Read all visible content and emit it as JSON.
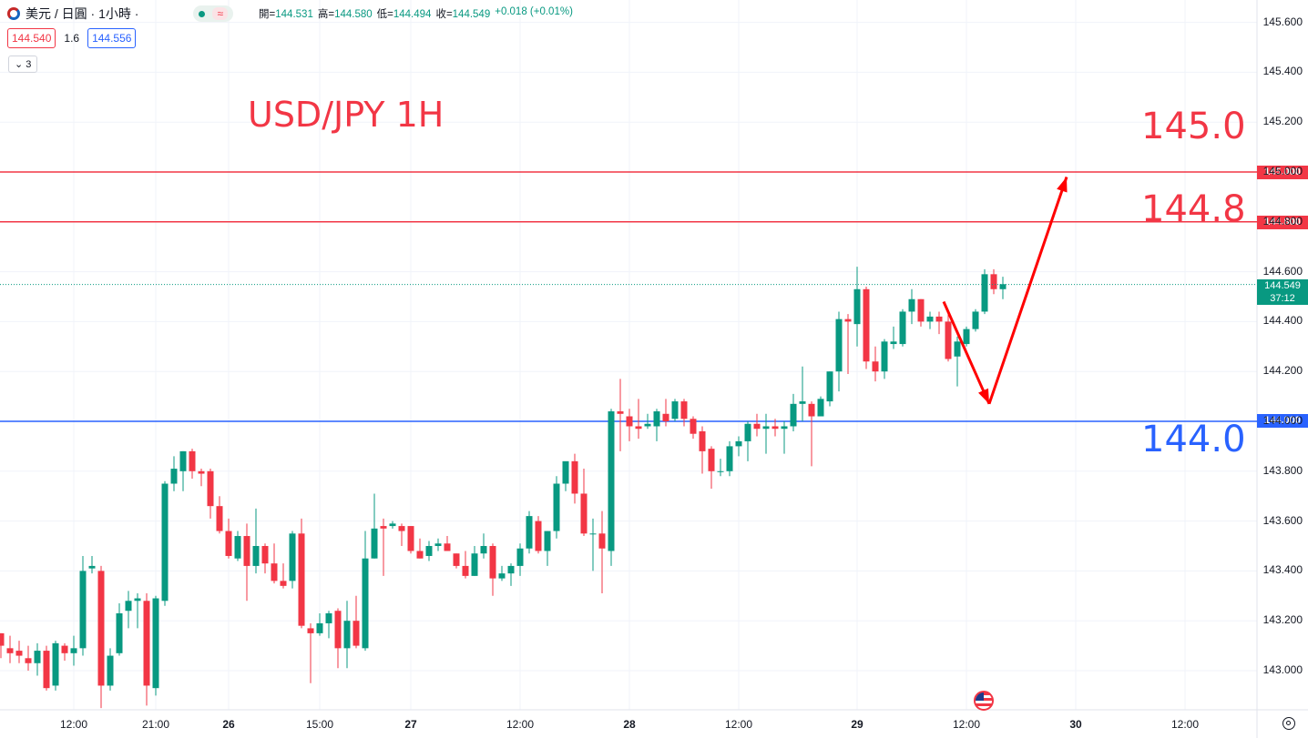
{
  "header": {
    "symbol": "美元 / 日圓 · 1小時 ·",
    "pill_icon": "≈",
    "ohlc": [
      {
        "key": "開",
        "value": "144.531"
      },
      {
        "key": "高",
        "value": "144.580"
      },
      {
        "key": "低",
        "value": "144.494"
      },
      {
        "key": "收",
        "value": "144.549"
      },
      {
        "key": "",
        "value": "+0.018 (+0.01%)"
      }
    ],
    "bid": "144.540",
    "spread": "1.6",
    "ask": "144.556",
    "indicator_toggle": "3"
  },
  "annotations": {
    "title": "USD/JPY 1H",
    "level_145": "145.0",
    "level_1448": "144.8",
    "level_144": "144.0"
  },
  "price_labels": {
    "l145": "145.000",
    "l1448": "144.800",
    "l144": "144.000",
    "current": "144.549",
    "countdown": "37:12"
  },
  "icons": {
    "settings": "gear-icon",
    "event": "us-flag-icon"
  },
  "colors": {
    "up": "#089981",
    "down": "#f23645",
    "support": "#2962ff",
    "resistance": "#f23645"
  },
  "chart_data": {
    "type": "candlestick",
    "title": "USD/JPY 1H",
    "ylim": [
      142.88,
      145.66
    ],
    "y_ticks": [
      "145.600",
      "145.400",
      "145.200",
      "145.000",
      "144.800",
      "144.600",
      "144.400",
      "144.200",
      "144.000",
      "143.800",
      "143.600",
      "143.400",
      "143.200",
      "143.000"
    ],
    "x_ticks": [
      "12:00",
      "21:00",
      "26",
      "15:00",
      "27",
      "12:00",
      "28",
      "12:00",
      "29",
      "12:00",
      "30",
      "12:00"
    ],
    "x_ticks_bold": [
      false,
      false,
      true,
      false,
      true,
      false,
      true,
      false,
      true,
      false,
      true,
      false
    ],
    "horizontal_lines": [
      {
        "price": 145.0,
        "color": "#f23645"
      },
      {
        "price": 144.8,
        "color": "#f23645"
      },
      {
        "price": 144.0,
        "color": "#2962ff"
      }
    ],
    "current_price": 144.549,
    "projection": [
      {
        "bar": 103.5,
        "price": 144.48
      },
      {
        "bar": 108.5,
        "price": 144.07
      },
      {
        "bar": 117.0,
        "price": 144.98
      }
    ],
    "candles": [
      {
        "o": 143.15,
        "h": 143.15,
        "l": 143.05,
        "c": 143.1
      },
      {
        "o": 143.09,
        "h": 143.14,
        "l": 143.03,
        "c": 143.07
      },
      {
        "o": 143.08,
        "h": 143.12,
        "l": 143.03,
        "c": 143.06
      },
      {
        "o": 143.05,
        "h": 143.1,
        "l": 143.0,
        "c": 143.03
      },
      {
        "o": 143.03,
        "h": 143.11,
        "l": 142.98,
        "c": 143.08
      },
      {
        "o": 143.08,
        "h": 143.1,
        "l": 142.92,
        "c": 142.93
      },
      {
        "o": 142.94,
        "h": 143.12,
        "l": 142.92,
        "c": 143.11
      },
      {
        "o": 143.1,
        "h": 143.11,
        "l": 143.04,
        "c": 143.07
      },
      {
        "o": 143.07,
        "h": 143.14,
        "l": 143.02,
        "c": 143.09
      },
      {
        "o": 143.09,
        "h": 143.46,
        "l": 143.06,
        "c": 143.4
      },
      {
        "o": 143.41,
        "h": 143.46,
        "l": 143.39,
        "c": 143.42
      },
      {
        "o": 143.4,
        "h": 143.42,
        "l": 142.85,
        "c": 142.94
      },
      {
        "o": 142.94,
        "h": 143.09,
        "l": 142.92,
        "c": 143.06
      },
      {
        "o": 143.07,
        "h": 143.27,
        "l": 143.06,
        "c": 143.23
      },
      {
        "o": 143.24,
        "h": 143.32,
        "l": 143.17,
        "c": 143.28
      },
      {
        "o": 143.28,
        "h": 143.31,
        "l": 143.17,
        "c": 143.29
      },
      {
        "o": 143.28,
        "h": 143.31,
        "l": 142.86,
        "c": 142.94
      },
      {
        "o": 142.93,
        "h": 143.3,
        "l": 142.9,
        "c": 143.29
      },
      {
        "o": 143.28,
        "h": 143.76,
        "l": 143.26,
        "c": 143.75
      },
      {
        "o": 143.75,
        "h": 143.86,
        "l": 143.72,
        "c": 143.81
      },
      {
        "o": 143.8,
        "h": 143.88,
        "l": 143.72,
        "c": 143.88
      },
      {
        "o": 143.88,
        "h": 143.89,
        "l": 143.77,
        "c": 143.8
      },
      {
        "o": 143.8,
        "h": 143.81,
        "l": 143.74,
        "c": 143.79
      },
      {
        "o": 143.8,
        "h": 143.81,
        "l": 143.61,
        "c": 143.66
      },
      {
        "o": 143.66,
        "h": 143.7,
        "l": 143.55,
        "c": 143.56
      },
      {
        "o": 143.56,
        "h": 143.61,
        "l": 143.45,
        "c": 143.46
      },
      {
        "o": 143.45,
        "h": 143.56,
        "l": 143.44,
        "c": 143.54
      },
      {
        "o": 143.54,
        "h": 143.59,
        "l": 143.28,
        "c": 143.42
      },
      {
        "o": 143.42,
        "h": 143.65,
        "l": 143.39,
        "c": 143.5
      },
      {
        "o": 143.5,
        "h": 143.51,
        "l": 143.39,
        "c": 143.43
      },
      {
        "o": 143.43,
        "h": 143.51,
        "l": 143.35,
        "c": 143.36
      },
      {
        "o": 143.36,
        "h": 143.43,
        "l": 143.33,
        "c": 143.34
      },
      {
        "o": 143.36,
        "h": 143.56,
        "l": 143.33,
        "c": 143.55
      },
      {
        "o": 143.55,
        "h": 143.61,
        "l": 143.17,
        "c": 143.18
      },
      {
        "o": 143.17,
        "h": 143.19,
        "l": 142.95,
        "c": 143.15
      },
      {
        "o": 143.15,
        "h": 143.23,
        "l": 143.14,
        "c": 143.19
      },
      {
        "o": 143.19,
        "h": 143.24,
        "l": 143.13,
        "c": 143.23
      },
      {
        "o": 143.24,
        "h": 143.25,
        "l": 143.01,
        "c": 143.09
      },
      {
        "o": 143.09,
        "h": 143.28,
        "l": 143.01,
        "c": 143.2
      },
      {
        "o": 143.2,
        "h": 143.3,
        "l": 143.09,
        "c": 143.1
      },
      {
        "o": 143.09,
        "h": 143.56,
        "l": 143.08,
        "c": 143.45
      },
      {
        "o": 143.45,
        "h": 143.71,
        "l": 143.45,
        "c": 143.57
      },
      {
        "o": 143.58,
        "h": 143.61,
        "l": 143.38,
        "c": 143.57
      },
      {
        "o": 143.58,
        "h": 143.6,
        "l": 143.57,
        "c": 143.59
      },
      {
        "o": 143.58,
        "h": 143.59,
        "l": 143.5,
        "c": 143.56
      },
      {
        "o": 143.58,
        "h": 143.58,
        "l": 143.47,
        "c": 143.48
      },
      {
        "o": 143.48,
        "h": 143.53,
        "l": 143.45,
        "c": 143.45
      },
      {
        "o": 143.46,
        "h": 143.52,
        "l": 143.44,
        "c": 143.5
      },
      {
        "o": 143.5,
        "h": 143.53,
        "l": 143.48,
        "c": 143.51
      },
      {
        "o": 143.51,
        "h": 143.54,
        "l": 143.48,
        "c": 143.48
      },
      {
        "o": 143.47,
        "h": 143.47,
        "l": 143.41,
        "c": 143.42
      },
      {
        "o": 143.42,
        "h": 143.48,
        "l": 143.37,
        "c": 143.38
      },
      {
        "o": 143.38,
        "h": 143.5,
        "l": 143.38,
        "c": 143.47
      },
      {
        "o": 143.47,
        "h": 143.55,
        "l": 143.45,
        "c": 143.5
      },
      {
        "o": 143.5,
        "h": 143.51,
        "l": 143.3,
        "c": 143.37
      },
      {
        "o": 143.37,
        "h": 143.42,
        "l": 143.36,
        "c": 143.39
      },
      {
        "o": 143.39,
        "h": 143.43,
        "l": 143.34,
        "c": 143.42
      },
      {
        "o": 143.42,
        "h": 143.51,
        "l": 143.38,
        "c": 143.49
      },
      {
        "o": 143.49,
        "h": 143.64,
        "l": 143.47,
        "c": 143.62
      },
      {
        "o": 143.6,
        "h": 143.62,
        "l": 143.47,
        "c": 143.48
      },
      {
        "o": 143.48,
        "h": 143.56,
        "l": 143.42,
        "c": 143.56
      },
      {
        "o": 143.56,
        "h": 143.78,
        "l": 143.53,
        "c": 143.75
      },
      {
        "o": 143.75,
        "h": 143.83,
        "l": 143.72,
        "c": 143.84
      },
      {
        "o": 143.84,
        "h": 143.87,
        "l": 143.67,
        "c": 143.71
      },
      {
        "o": 143.71,
        "h": 143.81,
        "l": 143.54,
        "c": 143.55
      },
      {
        "o": 143.55,
        "h": 143.61,
        "l": 143.4,
        "c": 143.55
      },
      {
        "o": 143.55,
        "h": 143.64,
        "l": 143.31,
        "c": 143.49
      },
      {
        "o": 143.48,
        "h": 144.05,
        "l": 143.42,
        "c": 144.04
      },
      {
        "o": 144.04,
        "h": 144.17,
        "l": 143.88,
        "c": 144.03
      },
      {
        "o": 144.02,
        "h": 144.05,
        "l": 143.92,
        "c": 143.98
      },
      {
        "o": 143.98,
        "h": 144.09,
        "l": 143.93,
        "c": 143.97
      },
      {
        "o": 143.98,
        "h": 144.03,
        "l": 143.97,
        "c": 143.99
      },
      {
        "o": 143.98,
        "h": 144.05,
        "l": 143.92,
        "c": 144.04
      },
      {
        "o": 144.03,
        "h": 144.09,
        "l": 143.98,
        "c": 144.0
      },
      {
        "o": 144.01,
        "h": 144.09,
        "l": 144.0,
        "c": 144.08
      },
      {
        "o": 144.08,
        "h": 144.09,
        "l": 143.98,
        "c": 144.01
      },
      {
        "o": 144.01,
        "h": 144.02,
        "l": 143.93,
        "c": 143.95
      },
      {
        "o": 143.96,
        "h": 143.98,
        "l": 143.79,
        "c": 143.88
      },
      {
        "o": 143.89,
        "h": 143.9,
        "l": 143.73,
        "c": 143.8
      },
      {
        "o": 143.8,
        "h": 143.85,
        "l": 143.78,
        "c": 143.8
      },
      {
        "o": 143.8,
        "h": 143.92,
        "l": 143.78,
        "c": 143.9
      },
      {
        "o": 143.9,
        "h": 143.94,
        "l": 143.86,
        "c": 143.92
      },
      {
        "o": 143.92,
        "h": 144.0,
        "l": 143.84,
        "c": 143.99
      },
      {
        "o": 143.99,
        "h": 144.03,
        "l": 143.94,
        "c": 143.97
      },
      {
        "o": 143.97,
        "h": 144.03,
        "l": 143.87,
        "c": 143.98
      },
      {
        "o": 143.98,
        "h": 144.01,
        "l": 143.94,
        "c": 143.97
      },
      {
        "o": 143.97,
        "h": 144.0,
        "l": 143.87,
        "c": 143.98
      },
      {
        "o": 143.98,
        "h": 144.11,
        "l": 143.96,
        "c": 144.07
      },
      {
        "o": 144.07,
        "h": 144.22,
        "l": 144.0,
        "c": 144.08
      },
      {
        "o": 144.07,
        "h": 144.08,
        "l": 143.82,
        "c": 144.02
      },
      {
        "o": 144.02,
        "h": 144.1,
        "l": 144.02,
        "c": 144.09
      },
      {
        "o": 144.08,
        "h": 144.2,
        "l": 144.06,
        "c": 144.2
      },
      {
        "o": 144.2,
        "h": 144.44,
        "l": 144.12,
        "c": 144.41
      },
      {
        "o": 144.41,
        "h": 144.43,
        "l": 144.19,
        "c": 144.4
      },
      {
        "o": 144.39,
        "h": 144.62,
        "l": 144.3,
        "c": 144.53
      },
      {
        "o": 144.53,
        "h": 144.54,
        "l": 144.21,
        "c": 144.24
      },
      {
        "o": 144.24,
        "h": 144.3,
        "l": 144.16,
        "c": 144.2
      },
      {
        "o": 144.2,
        "h": 144.33,
        "l": 144.17,
        "c": 144.32
      },
      {
        "o": 144.31,
        "h": 144.38,
        "l": 144.29,
        "c": 144.32
      },
      {
        "o": 144.31,
        "h": 144.45,
        "l": 144.3,
        "c": 144.44
      },
      {
        "o": 144.44,
        "h": 144.53,
        "l": 144.39,
        "c": 144.49
      },
      {
        "o": 144.49,
        "h": 144.49,
        "l": 144.38,
        "c": 144.4
      },
      {
        "o": 144.4,
        "h": 144.44,
        "l": 144.37,
        "c": 144.42
      },
      {
        "o": 144.42,
        "h": 144.44,
        "l": 144.35,
        "c": 144.4
      },
      {
        "o": 144.4,
        "h": 144.43,
        "l": 144.24,
        "c": 144.25
      },
      {
        "o": 144.26,
        "h": 144.34,
        "l": 144.14,
        "c": 144.32
      },
      {
        "o": 144.31,
        "h": 144.38,
        "l": 144.3,
        "c": 144.37
      },
      {
        "o": 144.37,
        "h": 144.45,
        "l": 144.36,
        "c": 144.44
      },
      {
        "o": 144.44,
        "h": 144.61,
        "l": 144.43,
        "c": 144.59
      },
      {
        "o": 144.59,
        "h": 144.61,
        "l": 144.51,
        "c": 144.53
      },
      {
        "o": 144.53,
        "h": 144.58,
        "l": 144.49,
        "c": 144.55
      }
    ]
  }
}
